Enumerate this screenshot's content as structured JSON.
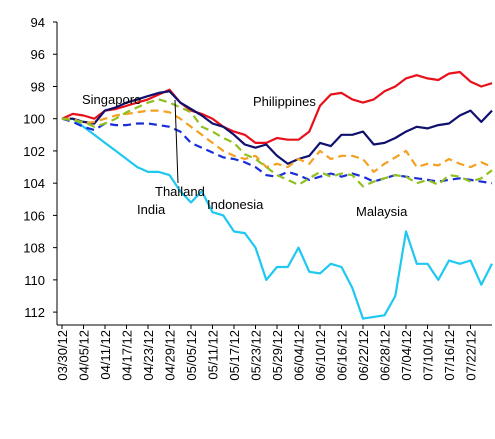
{
  "chart_data": {
    "type": "line",
    "categories": [
      "03/30/12",
      null,
      "04/05/12",
      null,
      "04/11/12",
      null,
      "04/17/12",
      null,
      "04/23/12",
      null,
      "04/29/12",
      null,
      "05/05/12",
      null,
      "05/11/12",
      null,
      "05/17/12",
      null,
      "05/23/12",
      null,
      "05/29/12",
      null,
      "06/04/12",
      null,
      "06/10/12",
      null,
      "06/16/12",
      null,
      "06/22/12",
      null,
      "06/28/12",
      null,
      "07/04/12",
      null,
      "07/10/12",
      null,
      "07/16/12",
      null,
      "07/22/12",
      null,
      null
    ],
    "series": [
      {
        "name": "India",
        "color": "#1ec8f0",
        "style": "solid",
        "values": [
          100,
          100,
          100.5,
          101,
          101.5,
          102,
          102.5,
          103,
          103.3,
          103.3,
          103.5,
          104.5,
          105.2,
          104.5,
          105.8,
          106,
          107,
          107.1,
          108,
          110,
          109.2,
          109.2,
          108,
          109.5,
          109.6,
          109,
          109.2,
          110.5,
          112.4,
          112.3,
          112.2,
          111,
          107,
          109,
          109,
          110,
          108.8,
          109,
          108.8,
          110.3,
          109
        ]
      },
      {
        "name": "Philippines",
        "color": "#e8101a",
        "style": "solid",
        "values": [
          100,
          99.7,
          99.8,
          100,
          99.5,
          99.4,
          99.2,
          99,
          98.8,
          98.5,
          98.2,
          99,
          99.5,
          99.7,
          100,
          100.5,
          100.8,
          101,
          101.5,
          101.5,
          101.2,
          101.3,
          101.3,
          100.8,
          99.2,
          98.5,
          98.4,
          98.8,
          99,
          98.8,
          98.3,
          98,
          97.5,
          97.3,
          97.5,
          97.6,
          97.2,
          97.1,
          97.7,
          98,
          97.8
        ]
      },
      {
        "name": "Singapore",
        "color": "#10106e",
        "style": "solid",
        "values": [
          100,
          100,
          100.2,
          100.3,
          99.5,
          99.3,
          99,
          98.8,
          98.6,
          98.4,
          98.3,
          99,
          99.4,
          99.8,
          100.3,
          100.5,
          101,
          101.6,
          101.8,
          101.6,
          102.3,
          102.8,
          102.5,
          102.3,
          101.5,
          101.7,
          101,
          101,
          100.8,
          101.6,
          101.5,
          101.2,
          100.8,
          100.5,
          100.6,
          100.4,
          100.3,
          99.8,
          99.5,
          100.2,
          99.5
        ]
      },
      {
        "name": "Thailand",
        "color": "#1a2ed8",
        "style": "dashed",
        "values": [
          100,
          100.2,
          100.5,
          100.7,
          100.3,
          100.4,
          100.4,
          100.3,
          100.3,
          100.4,
          100.5,
          100.8,
          101.5,
          101.8,
          102.1,
          102.4,
          102.5,
          102.7,
          103,
          103.5,
          103.6,
          103.3,
          103.5,
          103.8,
          103.6,
          103.4,
          103.6,
          103.4,
          103.6,
          103.9,
          103.7,
          103.5,
          103.6,
          103.7,
          103.8,
          103.9,
          103.8,
          103.7,
          103.8,
          103.9,
          104
        ]
      },
      {
        "name": "Indonesia",
        "color": "#f5a020",
        "style": "dashed",
        "values": [
          100,
          100,
          100.3,
          100.2,
          100,
          99.8,
          99.7,
          99.6,
          99.5,
          99.5,
          99.6,
          100,
          100.5,
          101,
          101.5,
          102,
          102.3,
          102.5,
          102.3,
          103,
          102.8,
          103,
          102.5,
          102.8,
          102,
          102.5,
          102.3,
          102.3,
          102.5,
          103.3,
          102.8,
          102.4,
          102,
          103,
          102.8,
          102.9,
          102.5,
          102.8,
          103,
          102.7,
          103
        ]
      },
      {
        "name": "Malaysia",
        "color": "#90c020",
        "style": "dashed",
        "values": [
          100,
          100.1,
          100.2,
          100.5,
          100.3,
          100,
          99.6,
          99.3,
          99,
          98.8,
          99,
          99.3,
          99.6,
          100.5,
          100.8,
          101.2,
          101.5,
          102.2,
          102.5,
          103,
          103.5,
          103.8,
          104.1,
          103.7,
          103.3,
          103.6,
          103.4,
          103.5,
          104.2,
          103.9,
          103.7,
          103.5,
          103.6,
          104,
          103.8,
          104.1,
          103.5,
          103.6,
          103.9,
          103.7,
          103.2
        ]
      }
    ],
    "ylim": [
      94,
      112.8
    ],
    "yticks": [
      94,
      96,
      98,
      100,
      102,
      104,
      106,
      108,
      110,
      112
    ],
    "invert_y": true
  }
}
